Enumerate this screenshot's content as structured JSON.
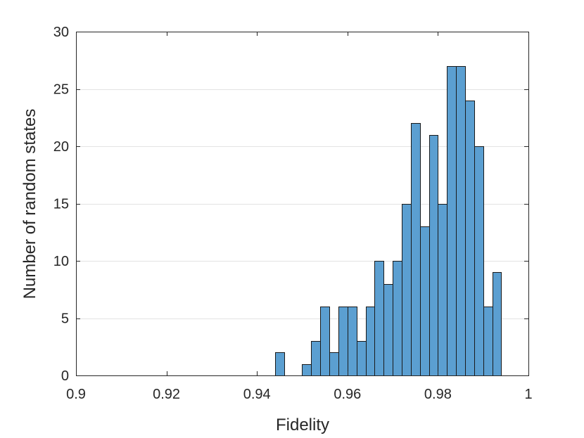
{
  "chart_data": {
    "type": "bar",
    "subtype": "histogram",
    "xlabel": "Fidelity",
    "ylabel": "Number of random states",
    "xlim": [
      0.9,
      1.0
    ],
    "ylim": [
      0,
      30
    ],
    "x_ticks": [
      "0.9",
      "0.92",
      "0.94",
      "0.96",
      "0.98",
      "1"
    ],
    "x_tick_values": [
      0.9,
      0.92,
      0.94,
      0.96,
      0.98,
      1.0
    ],
    "y_ticks": [
      "0",
      "5",
      "10",
      "15",
      "20",
      "25",
      "30"
    ],
    "y_tick_values": [
      0,
      5,
      10,
      15,
      20,
      25,
      30
    ],
    "grid": "horizontal",
    "bin_width": 0.002,
    "bin_edges_start": 0.944,
    "counts": [
      2,
      0,
      0,
      1,
      3,
      6,
      2,
      6,
      6,
      3,
      6,
      10,
      8,
      10,
      15,
      22,
      13,
      21,
      15,
      27,
      27,
      24,
      20,
      6,
      9
    ],
    "bar_color": "#5b9fd1",
    "edge_color": "#1a1a1a"
  }
}
